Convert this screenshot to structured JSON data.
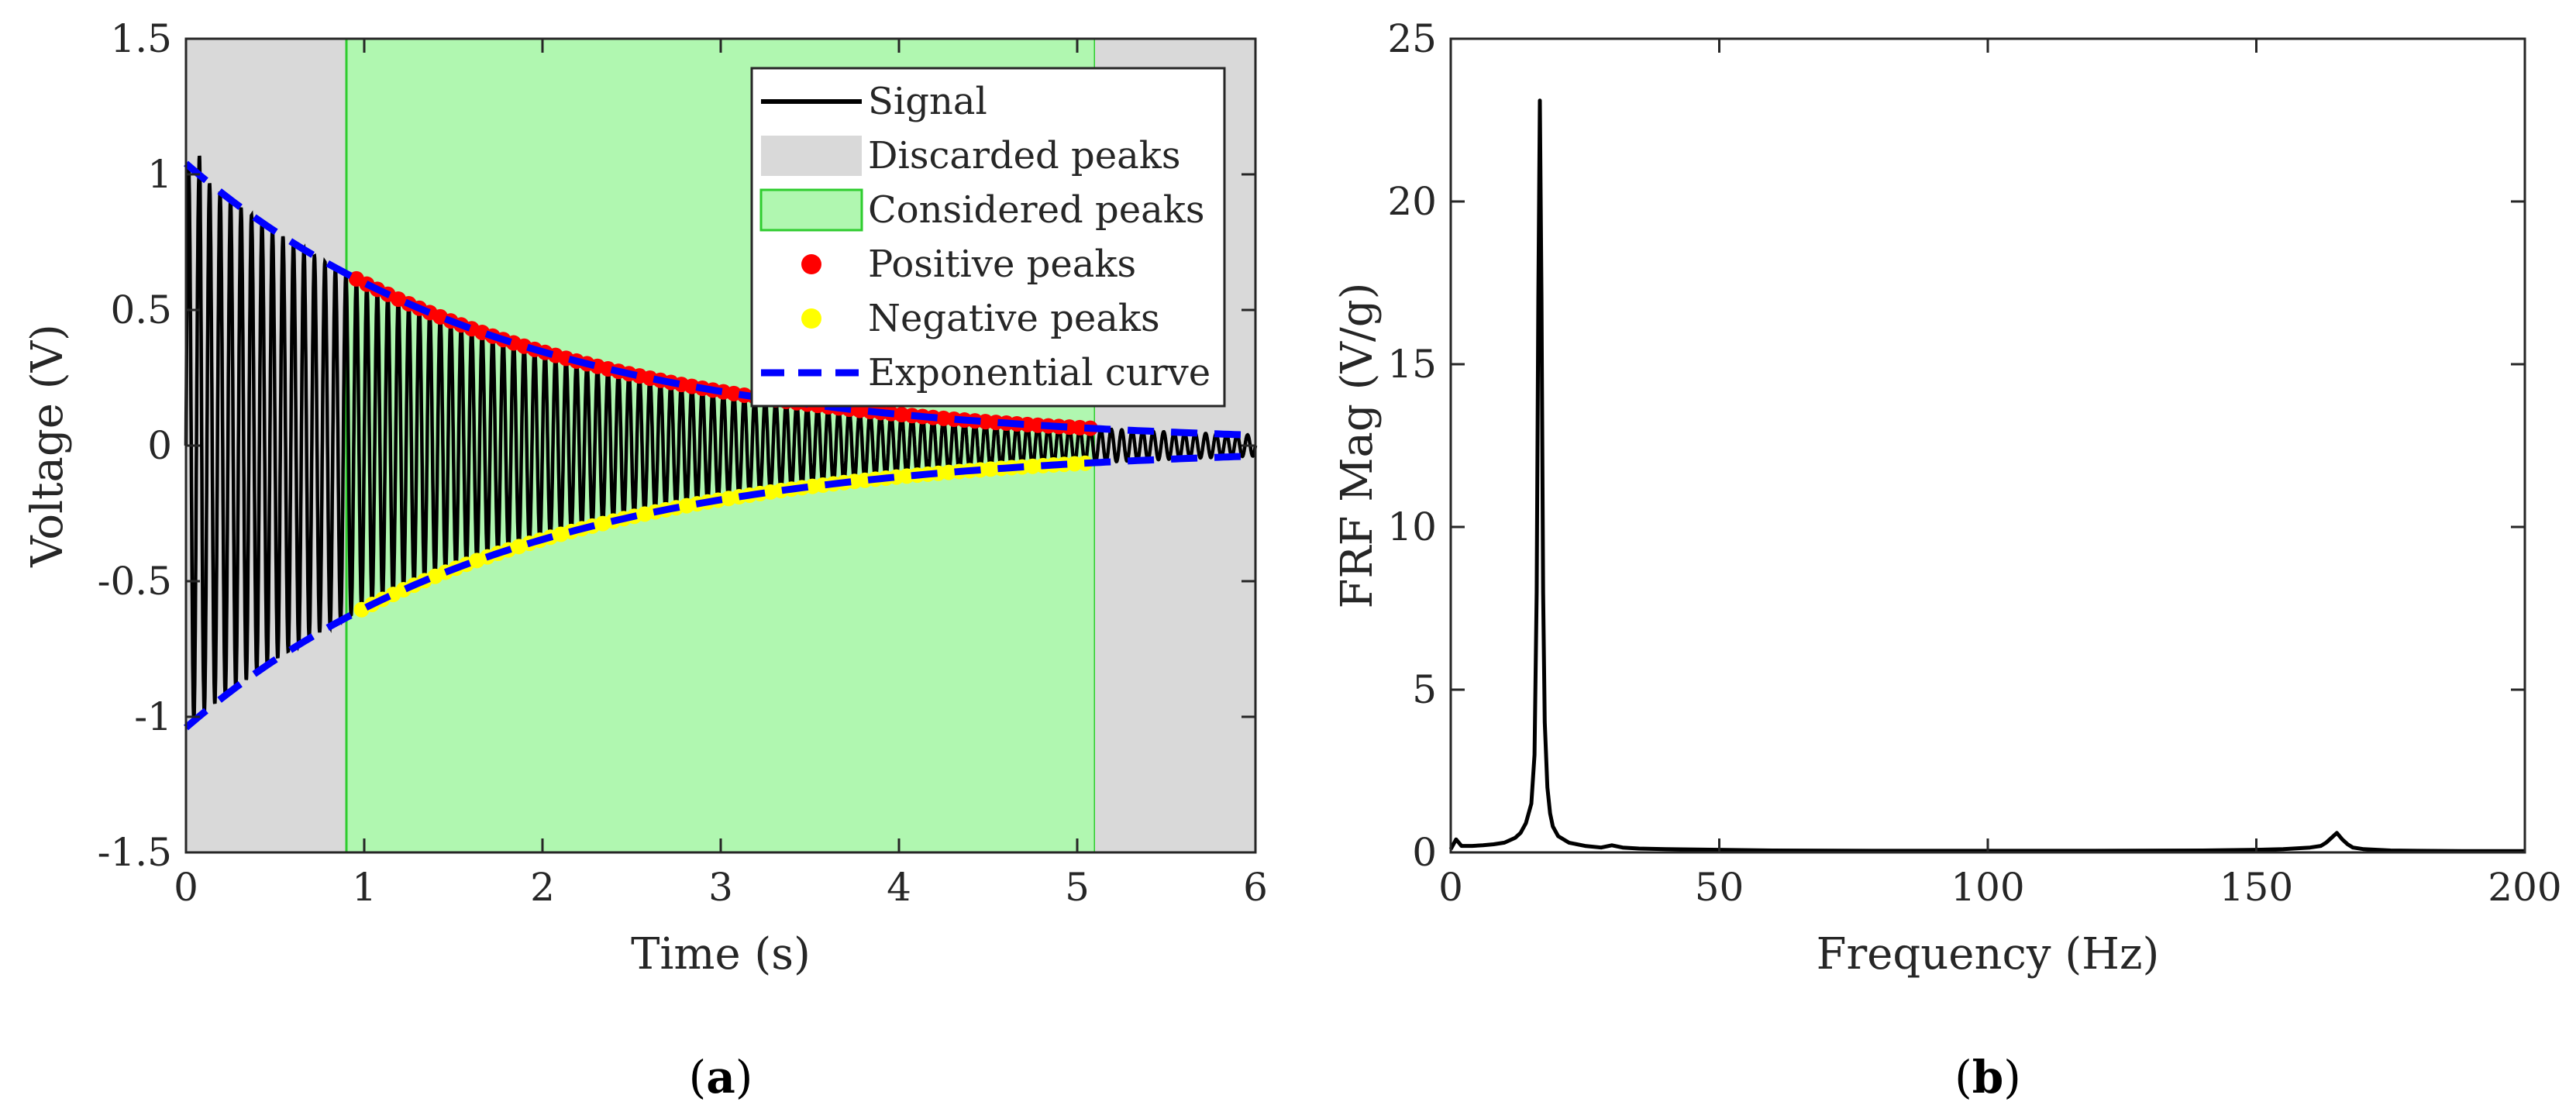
{
  "chart_data": [
    {
      "type": "line",
      "panel_label": "(a)",
      "xlabel": "Time (s)",
      "ylabel": "Voltage (V)",
      "xlim": [
        0,
        6
      ],
      "ylim": [
        -1.5,
        1.5
      ],
      "xticks": [
        0,
        1,
        2,
        3,
        4,
        5,
        6
      ],
      "xtick_labels": [
        "0",
        "1",
        "2",
        "3",
        "4",
        "5",
        "6"
      ],
      "yticks": [
        -1.5,
        -1,
        -0.5,
        0,
        0.5,
        1,
        1.5
      ],
      "ytick_labels": [
        "-1.5",
        "-1",
        "-0.5",
        "0",
        "0.5",
        "1",
        "1.5"
      ],
      "grid": false,
      "legend_position": "top-right",
      "regions": [
        {
          "name": "Discarded peaks",
          "x": [
            0,
            0.9
          ],
          "color": "#d9d9d9"
        },
        {
          "name": "Considered peaks",
          "x": [
            0.9,
            5.1
          ],
          "color": "#b0f7b0",
          "edge": "#2ecc2e"
        },
        {
          "name": "Discarded peaks",
          "x": [
            5.1,
            6
          ],
          "color": "#d9d9d9"
        }
      ],
      "signal": {
        "name": "Signal",
        "color": "#000000",
        "frequency_hz": 17,
        "initial_amplitude": 1.04,
        "decay_rate": 0.55,
        "initial_spike": 1.2
      },
      "series": [
        {
          "name": "Positive peaks",
          "marker": "dot",
          "color": "#ff0000",
          "x_range": [
            0.9,
            5.1
          ]
        },
        {
          "name": "Negative peaks",
          "marker": "dot",
          "color": "#ffff00",
          "x_range": [
            0.9,
            5.1
          ]
        },
        {
          "name": "Exponential curve",
          "style": "dashed",
          "color": "#0000ff",
          "amplitude": 1.04,
          "decay_rate": 0.55
        }
      ],
      "legend": [
        {
          "label": "Signal",
          "kind": "line",
          "color": "#000000"
        },
        {
          "label": "Discarded peaks",
          "kind": "patch",
          "color": "#d9d9d9"
        },
        {
          "label": "Considered peaks",
          "kind": "patch",
          "color": "#b0f7b0",
          "edge": "#2ecc2e"
        },
        {
          "label": "Positive peaks",
          "kind": "dot",
          "color": "#ff0000"
        },
        {
          "label": "Negative peaks",
          "kind": "dot",
          "color": "#ffff00"
        },
        {
          "label": "Exponential curve",
          "kind": "dash",
          "color": "#0000ff"
        }
      ]
    },
    {
      "type": "line",
      "panel_label": "(b)",
      "xlabel": "Frequency (Hz)",
      "ylabel": "FRF Mag (V/g)",
      "xlim": [
        0,
        200
      ],
      "ylim": [
        0,
        25
      ],
      "xticks": [
        0,
        50,
        100,
        150,
        200
      ],
      "xtick_labels": [
        "0",
        "50",
        "100",
        "150",
        "200"
      ],
      "yticks": [
        0,
        5,
        10,
        15,
        20,
        25
      ],
      "ytick_labels": [
        "0",
        "5",
        "10",
        "15",
        "20",
        "25"
      ],
      "grid": false,
      "series": [
        {
          "name": "",
          "color": "#000000",
          "x": [
            0,
            1,
            2,
            4,
            6,
            8,
            10,
            12,
            13,
            14,
            15,
            15.6,
            16,
            16.3,
            16.6,
            16.9,
            17.2,
            17.5,
            18,
            18.5,
            19,
            20,
            22,
            25,
            28,
            30,
            32,
            35,
            40,
            50,
            60,
            80,
            100,
            120,
            140,
            150,
            155,
            160,
            162,
            163,
            164,
            165,
            166,
            167,
            168,
            170,
            175,
            180,
            190,
            200
          ],
          "y": [
            0.1,
            0.4,
            0.2,
            0.2,
            0.22,
            0.25,
            0.3,
            0.45,
            0.6,
            0.9,
            1.5,
            3.0,
            8.0,
            17.0,
            23.1,
            17.0,
            8.0,
            4.0,
            2.0,
            1.2,
            0.8,
            0.5,
            0.3,
            0.2,
            0.15,
            0.22,
            0.15,
            0.12,
            0.1,
            0.08,
            0.06,
            0.05,
            0.05,
            0.05,
            0.06,
            0.08,
            0.1,
            0.15,
            0.2,
            0.3,
            0.45,
            0.6,
            0.4,
            0.25,
            0.15,
            0.1,
            0.06,
            0.05,
            0.04,
            0.04
          ]
        }
      ]
    }
  ]
}
